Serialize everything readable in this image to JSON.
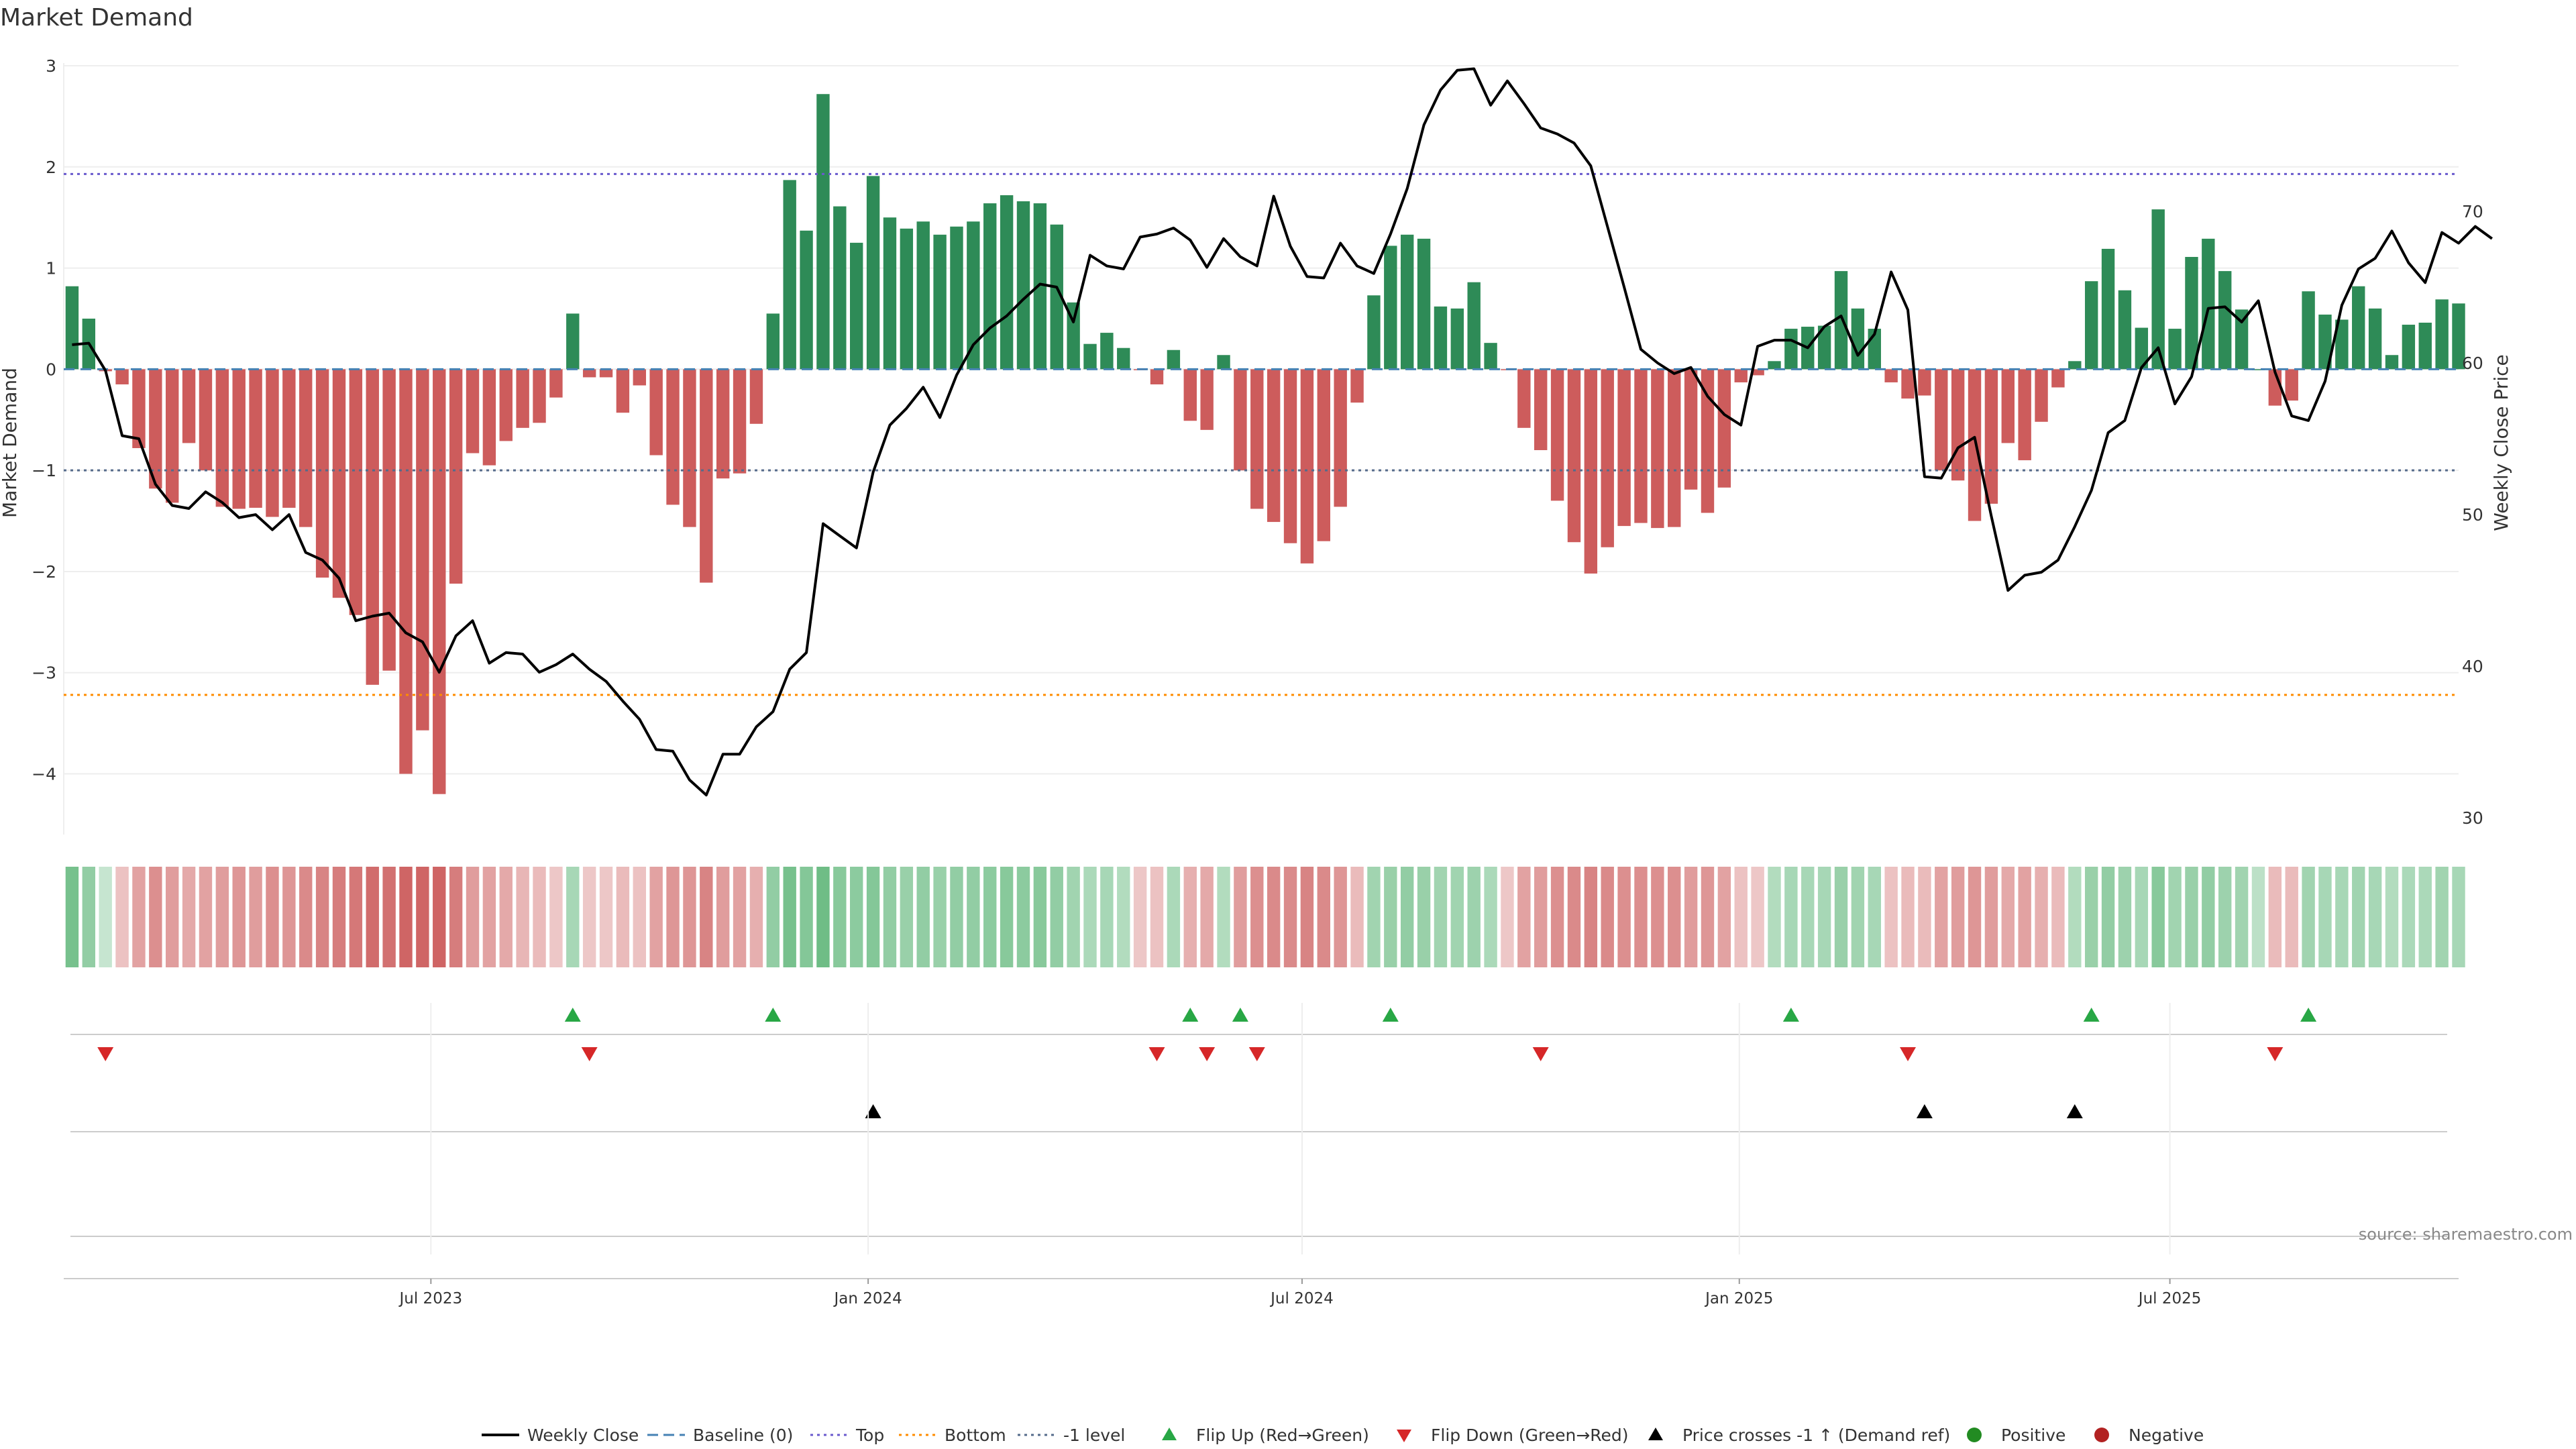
{
  "chart_data": {
    "type": "bar",
    "title": "Market Demand",
    "ylabel": "Market Demand",
    "y2label": "Weekly Close Price",
    "ylim": [
      -4.6,
      3.0
    ],
    "y2lim": [
      28.9,
      79.6
    ],
    "yticks": [
      "3",
      "2",
      "1",
      "0",
      "−1",
      "−2",
      "−3",
      "−4"
    ],
    "yticks_values": [
      3,
      2,
      1,
      0,
      -1,
      -2,
      -3,
      -4
    ],
    "y2ticks": [
      "70",
      "60",
      "50",
      "40",
      "30"
    ],
    "y2ticks_values": [
      70,
      60,
      50,
      40,
      30
    ],
    "x_range_weeks": [
      0,
      143.5
    ],
    "xticks": [
      {
        "label": "Jul 2023",
        "week": 22
      },
      {
        "label": "Jan 2024",
        "week": 48.2
      },
      {
        "label": "Jul 2024",
        "week": 74.2
      },
      {
        "label": "Jan 2025",
        "week": 100.4
      },
      {
        "label": "Jul 2025",
        "week": 126.2
      }
    ],
    "reference_lines": {
      "top": 1.93,
      "bottom": -3.22,
      "minus_one_level": -1.0,
      "baseline": 0.0
    },
    "demand": [
      0.82,
      0.5,
      -0.02,
      -0.15,
      -0.78,
      -1.18,
      -1.32,
      -0.73,
      -1.0,
      -1.36,
      -1.38,
      -1.37,
      -1.46,
      -1.37,
      -1.56,
      -2.06,
      -2.26,
      -2.43,
      -3.12,
      -2.98,
      -4.0,
      -3.57,
      -4.2,
      -2.12,
      -0.83,
      -0.95,
      -0.71,
      -0.58,
      -0.53,
      -0.28,
      0.55,
      -0.08,
      -0.08,
      -0.43,
      -0.16,
      -0.85,
      -1.34,
      -1.56,
      -2.11,
      -1.08,
      -1.03,
      -0.54,
      0.55,
      1.87,
      1.37,
      2.72,
      1.61,
      1.25,
      1.91,
      1.5,
      1.39,
      1.46,
      1.33,
      1.41,
      1.46,
      1.64,
      1.72,
      1.66,
      1.64,
      1.43,
      0.66,
      0.25,
      0.36,
      0.21,
      -0.01,
      -0.15,
      0.19,
      -0.51,
      -0.6,
      0.14,
      -1.0,
      -1.38,
      -1.51,
      -1.72,
      -1.92,
      -1.7,
      -1.36,
      -0.33,
      0.73,
      1.22,
      1.33,
      1.29,
      0.62,
      0.6,
      0.86,
      0.26,
      -0.01,
      -0.58,
      -0.8,
      -1.3,
      -1.71,
      -2.02,
      -1.76,
      -1.55,
      -1.52,
      -1.57,
      -1.56,
      -1.19,
      -1.42,
      -1.17,
      -0.13,
      -0.06,
      0.08,
      0.4,
      0.42,
      0.43,
      0.97,
      0.6,
      0.4,
      -0.13,
      -0.29,
      -0.26,
      -1.0,
      -1.1,
      -1.5,
      -1.33,
      -0.73,
      -0.9,
      -0.52,
      -0.18,
      0.08,
      0.87,
      1.19,
      0.78,
      0.41,
      1.58,
      0.4,
      1.11,
      1.29,
      0.97,
      0.59,
      0.0,
      -0.36,
      -0.31,
      0.77,
      0.54,
      0.49,
      0.82,
      0.6,
      0.14,
      0.44,
      0.46,
      0.69,
      0.65
    ],
    "price": [
      61.2,
      61.3,
      59.5,
      55.2,
      55.0,
      52.0,
      50.6,
      50.4,
      51.5,
      50.8,
      49.8,
      50.0,
      49.0,
      50.0,
      47.5,
      47.0,
      45.8,
      43.0,
      43.3,
      43.5,
      42.2,
      41.6,
      39.6,
      42.0,
      43.0,
      40.2,
      40.9,
      40.8,
      39.6,
      40.1,
      40.8,
      39.8,
      39.0,
      37.7,
      36.5,
      34.5,
      34.4,
      32.5,
      31.5,
      34.2,
      34.2,
      36.0,
      37.0,
      39.8,
      40.9,
      49.4,
      48.6,
      47.8,
      52.8,
      55.9,
      57.0,
      58.4,
      56.4,
      59.2,
      61.2,
      62.3,
      63.1,
      64.2,
      65.2,
      65.0,
      62.7,
      67.1,
      66.4,
      66.2,
      68.3,
      68.5,
      68.9,
      68.1,
      66.3,
      68.2,
      67.0,
      66.4,
      71.0,
      67.7,
      65.7,
      65.6,
      67.9,
      66.4,
      65.9,
      68.5,
      71.5,
      75.7,
      78.0,
      79.3,
      79.4,
      77.0,
      78.6,
      77.1,
      75.5,
      75.1,
      74.5,
      73.0,
      69.0,
      65.0,
      60.9,
      60.0,
      59.3,
      59.7,
      57.8,
      56.6,
      55.9,
      61.1,
      61.5,
      61.5,
      61.0,
      62.4,
      63.1,
      60.5,
      61.9,
      66.0,
      63.5,
      52.5,
      52.4,
      54.4,
      55.1,
      49.9,
      45.0,
      46.0,
      46.2,
      47.0,
      49.2,
      51.6,
      55.4,
      56.2,
      59.7,
      61.0,
      57.3,
      59.1,
      63.6,
      63.7,
      62.7,
      64.1,
      59.4,
      56.5,
      56.2,
      58.8,
      63.8,
      66.2,
      66.9,
      68.7,
      66.6,
      65.3,
      68.6,
      67.9,
      69.0,
      68.2
    ],
    "heat_strip": [
      0.85,
      0.6,
      0.1,
      -0.25,
      -0.5,
      -0.65,
      -0.55,
      -0.45,
      -0.5,
      -0.55,
      -0.6,
      -0.55,
      -0.65,
      -0.6,
      -0.7,
      -0.75,
      -0.8,
      -0.85,
      -0.95,
      -0.9,
      -1.0,
      -1.0,
      -1.0,
      -0.8,
      -0.55,
      -0.5,
      -0.45,
      -0.35,
      -0.3,
      -0.2,
      0.4,
      -0.2,
      -0.2,
      -0.3,
      -0.25,
      -0.5,
      -0.6,
      -0.6,
      -0.75,
      -0.55,
      -0.5,
      -0.4,
      0.6,
      0.85,
      0.75,
      0.95,
      0.7,
      0.65,
      0.75,
      0.6,
      0.55,
      0.6,
      0.55,
      0.6,
      0.6,
      0.65,
      0.7,
      0.65,
      0.7,
      0.6,
      0.45,
      0.35,
      0.4,
      0.3,
      -0.2,
      -0.25,
      0.35,
      -0.4,
      -0.45,
      0.3,
      -0.55,
      -0.65,
      -0.7,
      -0.7,
      -0.75,
      -0.7,
      -0.6,
      -0.3,
      0.45,
      0.55,
      0.6,
      0.55,
      0.45,
      0.45,
      0.5,
      0.35,
      -0.2,
      -0.5,
      -0.55,
      -0.65,
      -0.7,
      -0.75,
      -0.7,
      -0.65,
      -0.65,
      -0.65,
      -0.65,
      -0.55,
      -0.6,
      -0.5,
      -0.25,
      -0.2,
      0.3,
      0.4,
      0.4,
      0.4,
      0.55,
      0.45,
      0.4,
      -0.25,
      -0.3,
      -0.3,
      -0.5,
      -0.55,
      -0.6,
      -0.55,
      -0.45,
      -0.5,
      -0.4,
      -0.3,
      0.3,
      0.55,
      0.6,
      0.5,
      0.4,
      0.7,
      0.45,
      0.55,
      0.6,
      0.5,
      0.45,
      0.2,
      -0.3,
      -0.3,
      0.45,
      0.4,
      0.4,
      0.45,
      0.4,
      0.3,
      0.35,
      0.35,
      0.45,
      0.4
    ],
    "flip_up_weeks": [
      30,
      42,
      67,
      70,
      79,
      103,
      121,
      134
    ],
    "flip_down_weeks": [
      2,
      31,
      65,
      68,
      71,
      88,
      110,
      132
    ],
    "price_cross_weeks": [
      48,
      111,
      120
    ],
    "legend": [
      {
        "label": "Weekly Close",
        "marker": "line"
      },
      {
        "label": "Baseline (0)",
        "marker": "dashed-line"
      },
      {
        "label": "Top",
        "marker": "dotted-line-purple"
      },
      {
        "label": "Bottom",
        "marker": "dotted-line-orange"
      },
      {
        "label": "-1 level",
        "marker": "dotted-line-slate"
      },
      {
        "label": "Flip Up (Red→Green)",
        "marker": "triangle-up-green"
      },
      {
        "label": "Flip Down (Green→Red)",
        "marker": "triangle-down-red"
      },
      {
        "label": "Price crosses -1 ↑ (Demand ref)",
        "marker": "triangle-up-black"
      },
      {
        "label": "Positive",
        "marker": "circle-green"
      },
      {
        "label": "Negative",
        "marker": "circle-red"
      }
    ],
    "legend_position": "bottom-center",
    "source": "source: sharemaestro.com"
  },
  "colors": {
    "positive_bar": "#2e8b57",
    "negative_bar": "#cd5c5c",
    "price_line": "#000000",
    "baseline": "#4682b4",
    "top_line": "#6a5acd",
    "bottom_line": "#ff8c00",
    "minus_one_line": "#556b8b",
    "flip_up": "#28a745",
    "flip_down": "#d62728",
    "price_cross": "#000000",
    "legend_positive": "#228b22",
    "legend_negative": "#b22222",
    "grid": "#eeeeee",
    "axis": "#cccccc"
  }
}
